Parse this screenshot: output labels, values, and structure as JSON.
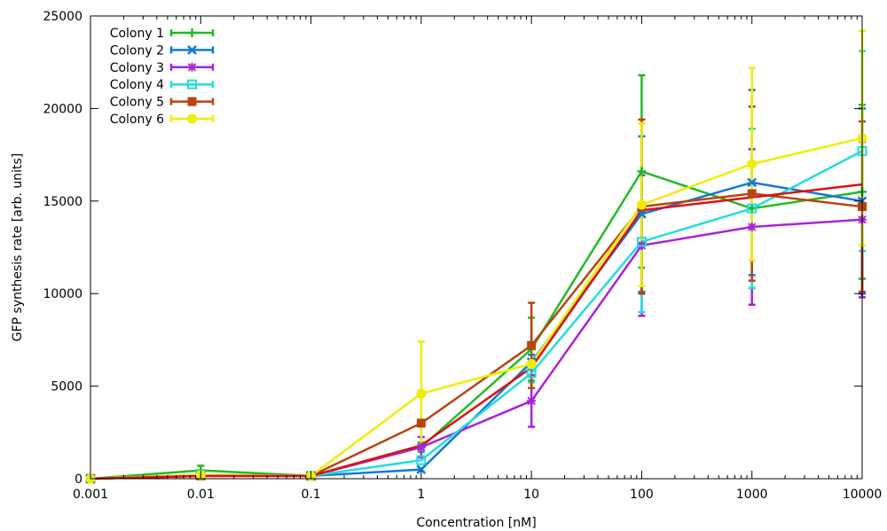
{
  "chart_data": {
    "type": "line",
    "xscale": "log",
    "x": [
      0.001,
      0.01,
      0.1,
      1,
      10,
      100,
      1000,
      10000
    ],
    "x_ticks": [
      "0.001",
      "0.01",
      "0.1",
      "1",
      "10",
      "100",
      "1000",
      "10000"
    ],
    "xlabel": "Concentration [nM]",
    "xlim": [
      0.001,
      10000
    ],
    "ylabel": "GFP synthesis rate [arb. units]",
    "ylim": [
      0,
      25000
    ],
    "y_ticks": [
      "0",
      "5000",
      "10000",
      "15000",
      "20000",
      "25000"
    ],
    "grid": false,
    "legend_position": "top-left",
    "series": [
      {
        "name": "Colony 1",
        "color": "#22bb22",
        "marker": "plus",
        "values": [
          0,
          450,
          150,
          1700,
          7000,
          16600,
          14600,
          15500
        ],
        "errors": [
          0,
          250,
          0,
          250,
          1700,
          5200,
          4300,
          4700
        ]
      },
      {
        "name": "Colony 2",
        "color": "#1177dd",
        "marker": "cross",
        "values": [
          0,
          200,
          150,
          500,
          6300,
          14300,
          16000,
          15000
        ],
        "errors": [
          0,
          0,
          0,
          0,
          400,
          4200,
          5000,
          5000
        ]
      },
      {
        "name": "Colony 3",
        "color": "#aa22dd",
        "marker": "star",
        "values": [
          0,
          150,
          150,
          1700,
          4200,
          12600,
          13600,
          14000
        ],
        "errors": [
          0,
          0,
          0,
          550,
          1400,
          3800,
          4200,
          4200
        ]
      },
      {
        "name": "Colony 4",
        "color": "#22dddd",
        "marker": "square-open",
        "values": [
          0,
          200,
          150,
          1000,
          5700,
          12800,
          14600,
          17700
        ],
        "errors": [
          0,
          0,
          0,
          0,
          500,
          3800,
          4300,
          5400
        ]
      },
      {
        "name": "Colony 5",
        "color": "#b8450e",
        "marker": "square-filled",
        "values": [
          0,
          150,
          150,
          3000,
          7200,
          14700,
          15400,
          14700
        ],
        "errors": [
          0,
          0,
          0,
          0,
          2300,
          4700,
          4700,
          4600
        ]
      },
      {
        "name": "Colony 6",
        "color": "#eeee00",
        "marker": "circle",
        "values": [
          0,
          200,
          150,
          4600,
          6200,
          14800,
          17000,
          18400
        ],
        "errors": [
          0,
          0,
          0,
          2800,
          0,
          4400,
          5200,
          5800
        ]
      },
      {
        "name": "",
        "color": "#dd1111",
        "marker": "none",
        "values": [
          0,
          150,
          150,
          1800,
          6000,
          14500,
          15200,
          15900
        ],
        "errors": [
          0,
          0,
          0,
          0,
          0,
          0,
          0,
          0
        ]
      }
    ]
  }
}
